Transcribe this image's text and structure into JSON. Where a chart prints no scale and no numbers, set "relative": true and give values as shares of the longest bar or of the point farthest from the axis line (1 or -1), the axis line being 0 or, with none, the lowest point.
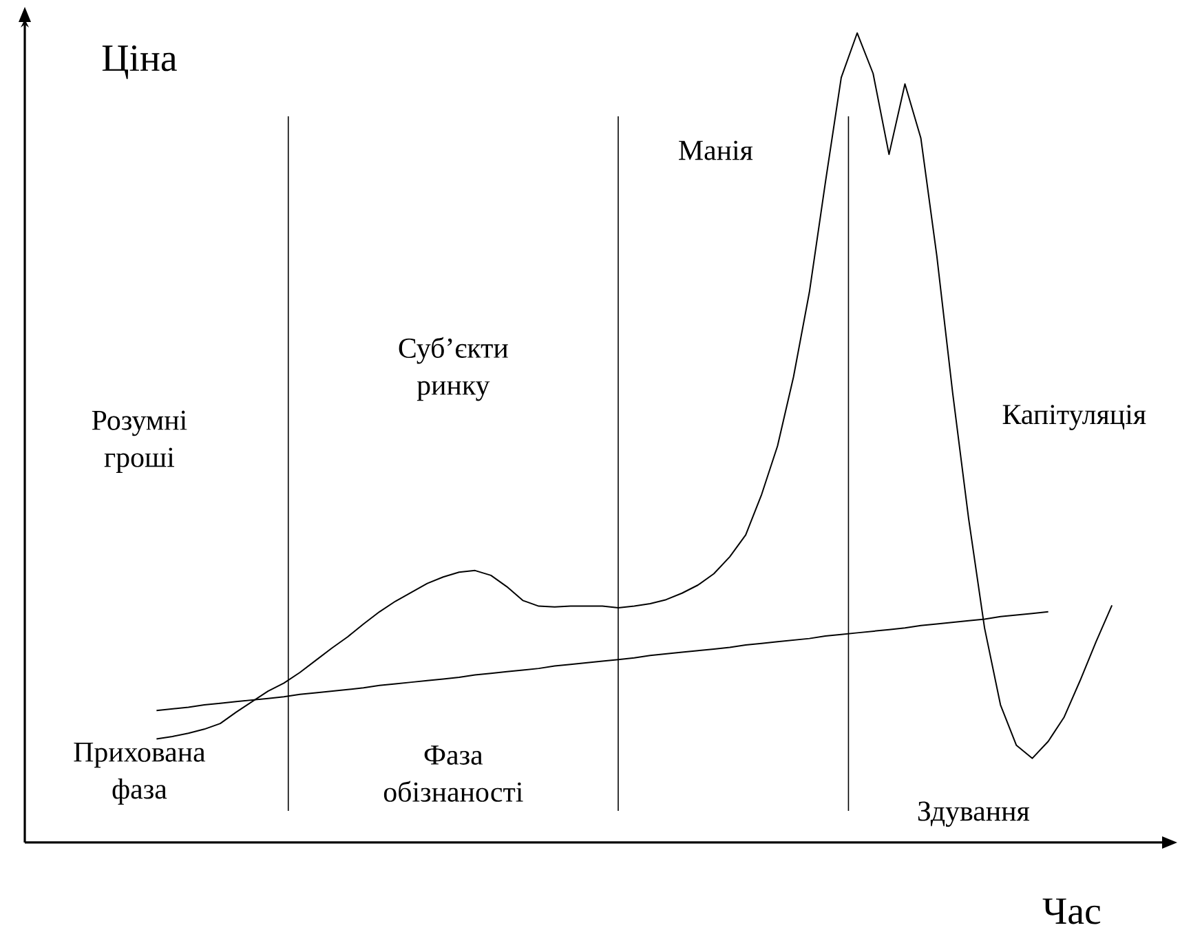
{
  "chart_data": {
    "type": "line",
    "relative": true,
    "xlabel": "Час",
    "ylabel": "Ціна",
    "categories": [
      null,
      null,
      null,
      null,
      null,
      null,
      null,
      null,
      null,
      null,
      null,
      null,
      null,
      null,
      null,
      null,
      null,
      null,
      null,
      null,
      null,
      null,
      null,
      null,
      null,
      null,
      null,
      null,
      null,
      null,
      null,
      null,
      null,
      null,
      null,
      null,
      null,
      null,
      null,
      null,
      null,
      null,
      null,
      null,
      null,
      null,
      null,
      null,
      null,
      null,
      null,
      null,
      null,
      null,
      null,
      null,
      null,
      null,
      null,
      null,
      null
    ],
    "series": [
      {
        "color": "#000000",
        "values": [
          0.128,
          0.131,
          0.135,
          0.14,
          0.147,
          0.161,
          0.174,
          0.187,
          0.197,
          0.21,
          0.225,
          0.24,
          0.254,
          0.27,
          0.285,
          0.298,
          0.309,
          0.32,
          0.328,
          0.334,
          0.336,
          0.33,
          0.316,
          0.299,
          0.292,
          0.291,
          0.292,
          0.292,
          0.292,
          0.29,
          0.292,
          0.295,
          0.3,
          0.308,
          0.318,
          0.332,
          0.353,
          0.38,
          0.43,
          0.49,
          0.575,
          0.68,
          0.815,
          0.945,
          1,
          0.95,
          0.85,
          0.937,
          0.87,
          0.725,
          0.555,
          0.4,
          0.265,
          0.17,
          0.12,
          0.104,
          0.125,
          0.155,
          0.2,
          0.248,
          0.293
        ]
      },
      {
        "color": "#000000",
        "values": [
          0.163,
          0.165,
          0.167,
          0.17,
          0.172,
          0.174,
          0.176,
          0.178,
          0.18,
          0.183,
          0.185,
          0.187,
          0.189,
          0.191,
          0.194,
          0.196,
          0.198,
          0.2,
          0.202,
          0.204,
          0.207,
          0.209,
          0.211,
          0.213,
          0.215,
          0.218,
          0.22,
          0.222,
          0.224,
          0.226,
          0.228,
          0.231,
          0.233,
          0.235,
          0.237,
          0.239,
          0.241,
          0.244,
          0.246,
          0.248,
          0.25,
          0.252,
          0.255,
          0.257,
          0.259,
          0.261,
          0.263,
          0.265,
          0.268,
          0.27,
          0.272,
          0.274,
          0.276,
          0.279,
          0.281,
          0.283,
          0.285,
          null,
          null,
          null,
          null
        ]
      }
    ],
    "annotations": [
      "Розумні гроші",
      "Суб’єкти ринку",
      "Манія",
      "Капітуляція",
      "Прихована фаза",
      "Фаза обізнаності",
      "Здування"
    ]
  }
}
